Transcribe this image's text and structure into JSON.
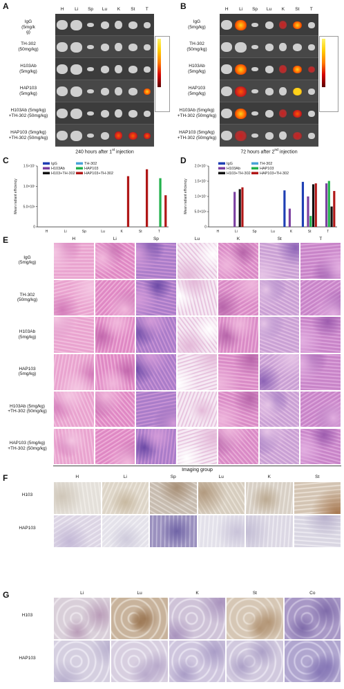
{
  "panels": {
    "A": {
      "letter": "A",
      "organs": [
        "H",
        "Li",
        "Sp",
        "Lu",
        "K",
        "St",
        "T"
      ],
      "groups": [
        "IgG\n(5mg/k\ng)",
        "TH-302\n(50mg/kg)",
        "H103Ab\n(5mg/kg)",
        "HAP103\n(5mg/kg)",
        "H103Ab (5mg/kg)\n+TH-302 (50mg/kg)",
        "HAP103 (5mg/kg)\n+TH-302 (50mg/kg)"
      ],
      "caption": "240 hours after 1st injection",
      "caption_main": "240 hours after 1",
      "caption_sup": "st",
      "caption_end": " injection"
    },
    "B": {
      "letter": "B",
      "organs": [
        "H",
        "Li",
        "Sp",
        "Lu",
        "K",
        "St",
        "T"
      ],
      "groups": [
        "IgG\n(5mg/kg)",
        "TH-302\n(50mg/kg)",
        "H103Ab\n(5mg/kg)",
        "HAP103\n(5mg/kg)",
        "H103Ab (5mg/kg)\n+TH-302 (50mg/kg)",
        "HAP103 (5mg/kg)\n+TH-302 (50mg/kg)"
      ],
      "caption_main": "72 hours after 2",
      "caption_sup": "nd",
      "caption_end": " injection"
    },
    "C": {
      "letter": "C"
    },
    "D": {
      "letter": "D"
    },
    "E": {
      "letter": "E",
      "organs": [
        "H",
        "Li",
        "Sp",
        "Lu",
        "K",
        "St",
        "T"
      ],
      "groups": [
        "IgG\n(5mg/kg)",
        "TH-302\n(50mg/kg)",
        "H103Ab\n(5mg/kg)",
        "HAP103\n(5mg/kg)",
        "H103Ab (5mg/kg)\n+TH-302 (50mg/kg)",
        "HAP103 (5mg/kg)\n+TH-302 (50mg/kg)"
      ],
      "caption": "Imaging group"
    },
    "F": {
      "letter": "F",
      "organs": [
        "H",
        "Li",
        "Sp",
        "Lu",
        "K",
        "St"
      ],
      "groups": [
        "H103",
        "HAP103"
      ]
    },
    "G": {
      "letter": "G",
      "organs": [
        "Li",
        "Lu",
        "K",
        "St",
        "Co"
      ],
      "groups": [
        "H103",
        "HAP103"
      ]
    }
  },
  "colors": {
    "IgG": "#1f3fb4",
    "TH-302": "#4aa3d8",
    "H103Ab": "#7b3fa0",
    "HAP103": "#22b14c",
    "H103+TH-302": "#111111",
    "HAP103+TH-302": "#b01717"
  },
  "chart_data": [
    {
      "type": "bar",
      "panel": "C",
      "ylabel": "Mean radiant efficiency",
      "categories": [
        "H",
        "Li",
        "Sp",
        "Lu",
        "K",
        "St",
        "T"
      ],
      "ytick_labels": [
        "0",
        "5.0×10⁶",
        "1.0×10⁷",
        "1.5×10⁷"
      ],
      "ylim": [
        0,
        15000000
      ],
      "legend": [
        "IgG",
        "TH-302",
        "H103Ab",
        "HAP103",
        "H103+TH-302",
        "HAP103+TH-302"
      ],
      "series": [
        {
          "name": "IgG",
          "values": [
            0,
            0,
            0,
            0,
            0,
            0,
            0
          ]
        },
        {
          "name": "TH-302",
          "values": [
            0,
            0,
            0,
            0,
            0,
            0,
            0
          ]
        },
        {
          "name": "H103Ab",
          "values": [
            0,
            0,
            0,
            0,
            0,
            0,
            0
          ]
        },
        {
          "name": "HAP103",
          "values": [
            0,
            0,
            0,
            0,
            0,
            0,
            12000000
          ]
        },
        {
          "name": "H103+TH-302",
          "values": [
            0,
            0,
            0,
            0,
            0,
            0,
            0
          ]
        },
        {
          "name": "HAP103+TH-302",
          "values": [
            0,
            0,
            0,
            0,
            12500000,
            14200000,
            7800000
          ]
        }
      ]
    },
    {
      "type": "bar",
      "panel": "D",
      "ylabel": "Mean radiant efficiency",
      "categories": [
        "H",
        "Li",
        "Sp",
        "Lu",
        "K",
        "St",
        "T"
      ],
      "ytick_labels": [
        "0",
        "5.0×10⁶",
        "1.0×10⁷",
        "1.5×10⁷",
        "2.0×10⁷"
      ],
      "ylim": [
        0,
        20000000
      ],
      "legend": [
        "IgG",
        "TH-302",
        "H103Ab",
        "HAP103",
        "H103+TH-302",
        "HAP103+TH-302"
      ],
      "series": [
        {
          "name": "IgG",
          "values": [
            0,
            0,
            0,
            0,
            12000000,
            14800000,
            0
          ]
        },
        {
          "name": "TH-302",
          "values": [
            0,
            0,
            0,
            0,
            0,
            0,
            0
          ]
        },
        {
          "name": "H103Ab",
          "values": [
            0,
            11500000,
            0,
            0,
            6000000,
            10000000,
            14300000
          ]
        },
        {
          "name": "HAP103",
          "values": [
            0,
            0,
            0,
            0,
            0,
            3600000,
            15100000
          ]
        },
        {
          "name": "H103+TH-302",
          "values": [
            0,
            12400000,
            0,
            0,
            0,
            14000000,
            6700000
          ]
        },
        {
          "name": "HAP103+TH-302",
          "values": [
            0,
            13000000,
            0,
            0,
            0,
            14300000,
            11800000
          ]
        }
      ]
    }
  ]
}
